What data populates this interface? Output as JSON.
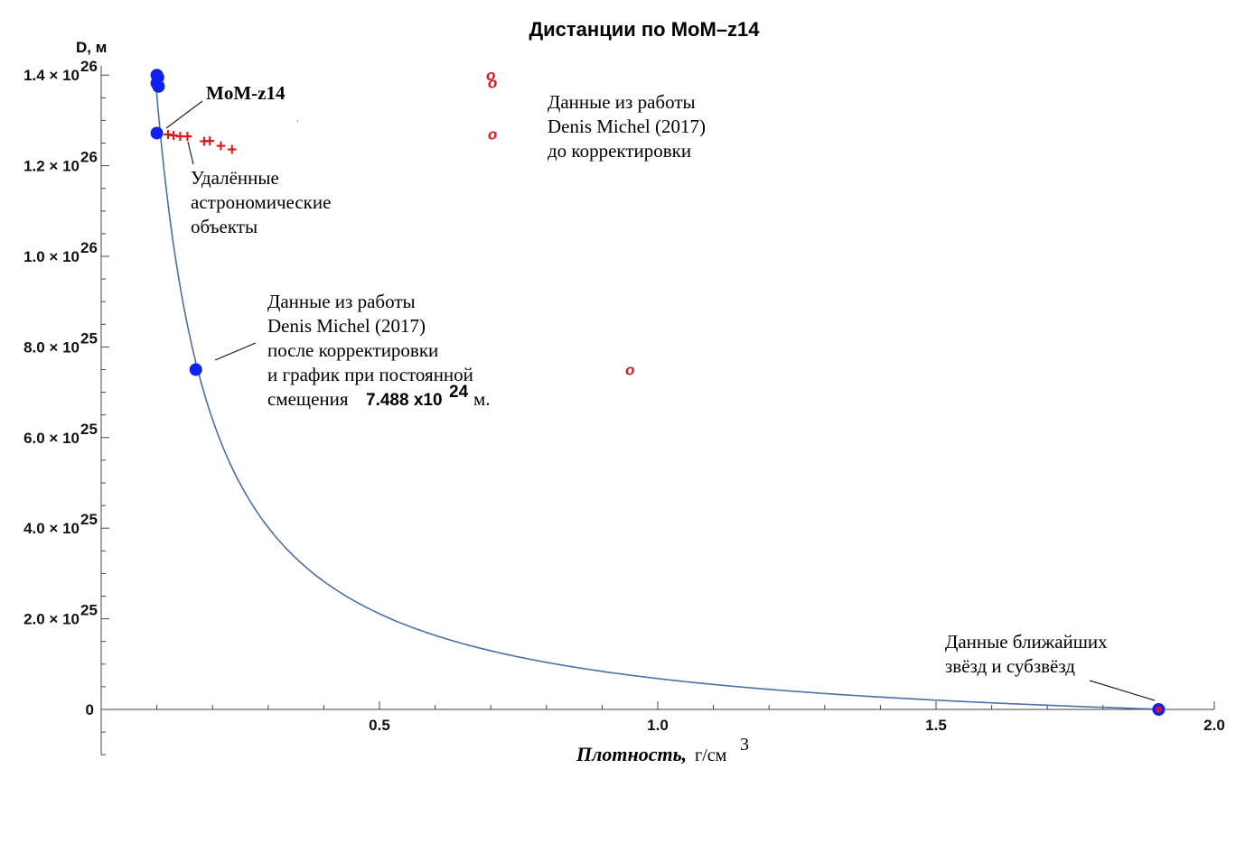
{
  "chart_data": {
    "type": "scatter",
    "title": "Дистанции по MoM–z14",
    "ylabel": "D, м",
    "xlabel_main": "Плотность,",
    "xlabel_unit": "г/см",
    "xlabel_unit_power": "3",
    "xlim": [
      0,
      2.0
    ],
    "ylim": [
      -1e+25,
      1.42e+26
    ],
    "x_ticks": [
      {
        "value": 0.5,
        "label": "0.5"
      },
      {
        "value": 1.0,
        "label": "1.0"
      },
      {
        "value": 1.5,
        "label": "1.5"
      },
      {
        "value": 2.0,
        "label": "2.0"
      }
    ],
    "y_ticks": [
      {
        "value": 0,
        "mantissa": "0",
        "exp": ""
      },
      {
        "value": 2e+25,
        "mantissa": "2.0 × 10",
        "exp": "25"
      },
      {
        "value": 4e+25,
        "mantissa": "4.0 × 10",
        "exp": "25"
      },
      {
        "value": 6e+25,
        "mantissa": "6.0 × 10",
        "exp": "25"
      },
      {
        "value": 8e+25,
        "mantissa": "8.0 × 10",
        "exp": "25"
      },
      {
        "value": 1e+26,
        "mantissa": "1.0 × 10",
        "exp": "26"
      },
      {
        "value": 1.2e+26,
        "mantissa": "1.2 × 10",
        "exp": "26"
      },
      {
        "value": 1.4e+26,
        "mantissa": "1.4 × 10",
        "exp": "26"
      }
    ],
    "curve": {
      "formula": "D = k / rho - offset",
      "k": 1.43e+25,
      "offset": 7.488e+24,
      "x_from": 0.0985,
      "x_to": 1.9,
      "color": "#4a6fa8"
    },
    "series": [
      {
        "marker": "dot",
        "color": "#1020ee",
        "x": [
          0.1,
          0.102,
          0.1,
          0.103,
          0.1,
          0.17,
          1.9
        ],
        "y": [
          1.4e+26,
          1.395e+26,
          1.382e+26,
          1.375e+26,
          1.272e+26,
          7.5e+25,
          0
        ]
      },
      {
        "marker": "o",
        "color": "#e0161b",
        "x": [
          0.7,
          0.703,
          0.703,
          0.95
        ],
        "y": [
          1.4e+26,
          1.383e+26,
          1.27e+26,
          7.5e+25
        ]
      },
      {
        "marker": "+",
        "color": "#e0161b",
        "x": [
          0.12,
          0.13,
          0.142,
          0.155,
          0.185,
          0.195,
          0.215,
          0.235
        ],
        "y": [
          1.27e+26,
          1.268e+26,
          1.266e+26,
          1.266e+26,
          1.255e+26,
          1.256e+26,
          1.245e+26,
          1.237e+26
        ]
      },
      {
        "marker": "dot-small",
        "color": "#e0161b",
        "x": [
          1.9
        ],
        "y": [
          0
        ]
      }
    ],
    "annotations": {
      "mom": "MoM-z14",
      "remote": [
        "Удалённые",
        "астрономические",
        "объекты"
      ],
      "before": [
        "Данные из работы",
        "Denis Michel (2017)",
        "до корректировки"
      ],
      "after": [
        "Данные из работы",
        "Denis Michel (2017)",
        "после корректировки",
        "и график при постоянной"
      ],
      "after_last_prefix": "смещения",
      "after_last_value": "7.488 x10",
      "after_last_power": "24",
      "after_last_suffix": "м.",
      "nearby": [
        "Данные ближайших",
        "звёзд и субзвёзд"
      ]
    },
    "circle_glyph": "o",
    "plus_glyph": "+"
  }
}
